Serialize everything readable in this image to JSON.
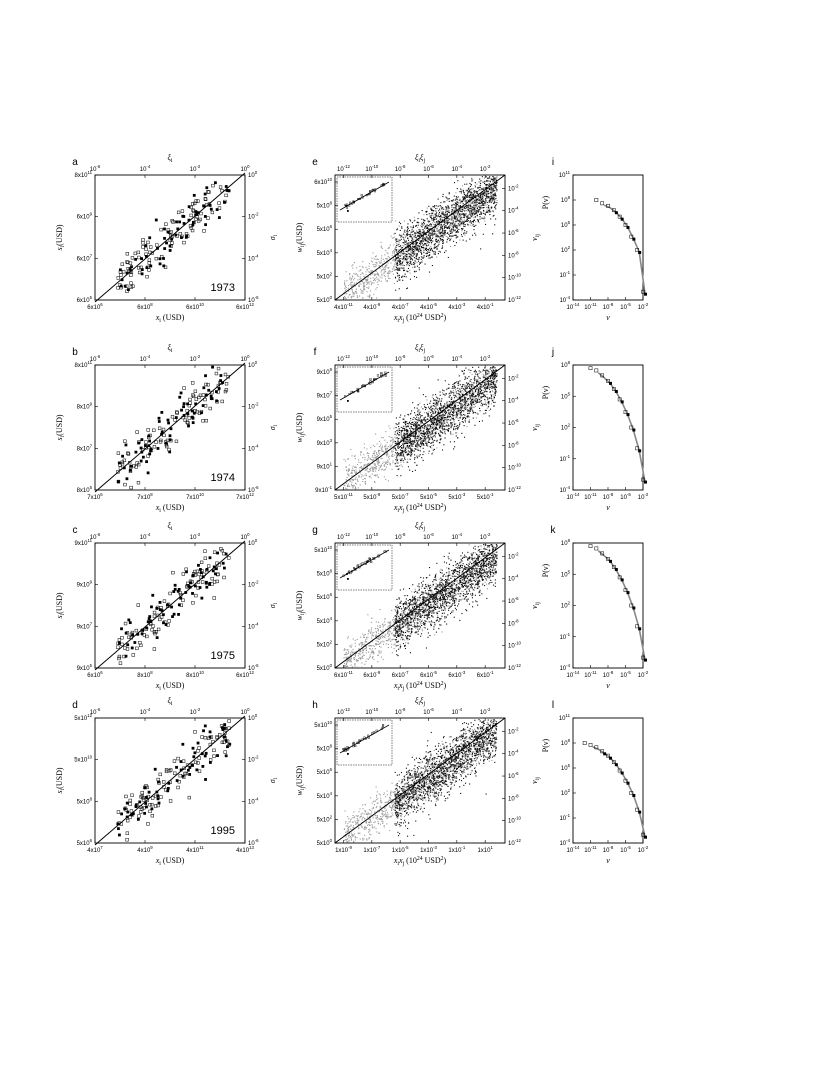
{
  "panels": [
    {
      "letter": "a",
      "kind": "scatter",
      "year": "1973",
      "xbot": [
        "6x10",
        "6",
        "6x10",
        "8",
        "6x10",
        "10",
        "6x10",
        "12"
      ],
      "ybot": [
        [
          "6x10",
          "5"
        ],
        [
          "6x10",
          "7"
        ],
        [
          "6x10",
          "9"
        ],
        [
          "8x10",
          "11"
        ]
      ],
      "xtop": [
        [
          "10",
          "-6"
        ],
        [
          "10",
          "-4"
        ],
        [
          "10",
          "-2"
        ],
        [
          "10",
          "0"
        ]
      ],
      "yright": [
        [
          "10",
          "-6"
        ],
        [
          "10",
          "-4"
        ],
        [
          "10",
          "-2"
        ],
        [
          "10",
          "0"
        ]
      ],
      "xlabel": "x",
      "xsub": "i",
      "xunit": " (USD)",
      "ylabel": "s",
      "ysub": "i",
      "yunit": "(USD)",
      "toplabel": "ξ",
      "topsub": "i",
      "rightlabel": "σ",
      "rightsub": "i"
    },
    {
      "letter": "b",
      "kind": "scatter",
      "year": "1974",
      "xbot": [
        "7x10",
        "6",
        "7x10",
        "8",
        "7x10",
        "10",
        "7x10",
        "12"
      ],
      "ybot": [
        [
          "8x10",
          "5"
        ],
        [
          "8x10",
          "7"
        ],
        [
          "8x10",
          "9"
        ],
        [
          "8x10",
          "11"
        ]
      ],
      "xtop": [
        [
          "10",
          "-6"
        ],
        [
          "10",
          "-4"
        ],
        [
          "10",
          "-2"
        ],
        [
          "10",
          "0"
        ]
      ],
      "yright": [
        [
          "10",
          "-6"
        ],
        [
          "10",
          "-4"
        ],
        [
          "10",
          "-2"
        ],
        [
          "10",
          "0"
        ]
      ],
      "xlabel": "x",
      "xsub": "i",
      "xunit": " (USD)",
      "ylabel": "s",
      "ysub": "i",
      "yunit": "(USD)",
      "toplabel": "ξ",
      "topsub": "i",
      "rightlabel": "σ",
      "rightsub": "i"
    },
    {
      "letter": "c",
      "kind": "scatter",
      "year": "1975",
      "xbot": [
        "6x10",
        "6",
        "8x10",
        "8",
        "8x10",
        "10",
        "6x10",
        "12"
      ],
      "ybot": [
        [
          "9x10",
          "5"
        ],
        [
          "9x10",
          "7"
        ],
        [
          "9x10",
          "9"
        ],
        [
          "9x10",
          "11"
        ]
      ],
      "xtop": [
        [
          "10",
          "-6"
        ],
        [
          "10",
          "-4"
        ],
        [
          "10",
          "-2"
        ],
        [
          "10",
          "0"
        ]
      ],
      "yright": [
        [
          "10",
          "-6"
        ],
        [
          "10",
          "-4"
        ],
        [
          "10",
          "-2"
        ],
        [
          "10",
          "0"
        ]
      ],
      "xlabel": "x",
      "xsub": "i",
      "xunit": " (USD)",
      "ylabel": "s",
      "ysub": "i",
      "yunit": "(USD)",
      "toplabel": "ξ",
      "topsub": "i",
      "rightlabel": "σ",
      "rightsub": "i"
    },
    {
      "letter": "d",
      "kind": "scatter",
      "year": "1995",
      "xbot": [
        "4x10",
        "7",
        "4x10",
        "9",
        "4x10",
        "11",
        "4x10",
        "13"
      ],
      "ybot": [
        [
          "5x10",
          "6"
        ],
        [
          "5x10",
          "8"
        ],
        [
          "5x10",
          "10"
        ],
        [
          "5x10",
          "12"
        ]
      ],
      "xtop": [
        [
          "10",
          "-6"
        ],
        [
          "10",
          "-4"
        ],
        [
          "10",
          "-2"
        ],
        [
          "10",
          "0"
        ]
      ],
      "yright": [
        [
          "10",
          "-6"
        ],
        [
          "10",
          "-4"
        ],
        [
          "10",
          "-2"
        ],
        [
          "10",
          "0"
        ]
      ],
      "xlabel": "x",
      "xsub": "i",
      "xunit": " (USD)",
      "ylabel": "s",
      "ysub": "i",
      "yunit": "(USD)",
      "toplabel": "ξ",
      "topsub": "i",
      "rightlabel": "σ",
      "rightsub": "i"
    },
    {
      "letter": "e",
      "kind": "cloud",
      "xbot": [
        [
          "4x10",
          "-11"
        ],
        [
          "4x10",
          "-9"
        ],
        [
          "4x10",
          "-7"
        ],
        [
          "4x10",
          "-5"
        ],
        [
          "4x10",
          "-3"
        ],
        [
          "4x10",
          "-1"
        ]
      ],
      "ybot": [
        [
          "5x10",
          "0"
        ],
        [
          "5x10",
          "2"
        ],
        [
          "5x10",
          "4"
        ],
        [
          "5x10",
          "6"
        ],
        [
          "5x10",
          "8"
        ],
        [
          "6x10",
          "10"
        ]
      ],
      "xtop": [
        [
          "10",
          "-12"
        ],
        [
          "10",
          "-10"
        ],
        [
          "10",
          "-8"
        ],
        [
          "10",
          "-6"
        ],
        [
          "10",
          "-4"
        ],
        [
          "10",
          "-2"
        ]
      ],
      "yright": [
        [
          "10",
          "-12"
        ],
        [
          "10",
          "-10"
        ],
        [
          "10",
          "-8"
        ],
        [
          "10",
          "-6"
        ],
        [
          "10",
          "-4"
        ],
        [
          "10",
          "-2"
        ]
      ]
    },
    {
      "letter": "f",
      "kind": "cloud",
      "xbot": [
        [
          "5x10",
          "-11"
        ],
        [
          "5x10",
          "-9"
        ],
        [
          "5x10",
          "-7"
        ],
        [
          "5x10",
          "-5"
        ],
        [
          "5x10",
          "-3"
        ],
        [
          "5x10",
          "-1"
        ]
      ],
      "ybot": [
        [
          "9x10",
          "-1"
        ],
        [
          "9x10",
          "1"
        ],
        [
          "9x10",
          "3"
        ],
        [
          "9x10",
          "5"
        ],
        [
          "9x10",
          "7"
        ],
        [
          "9x10",
          "9"
        ]
      ],
      "xtop": [
        [
          "10",
          "-12"
        ],
        [
          "10",
          "-10"
        ],
        [
          "10",
          "-8"
        ],
        [
          "10",
          "-6"
        ],
        [
          "10",
          "-4"
        ],
        [
          "10",
          "-2"
        ]
      ],
      "yright": [
        [
          "10",
          "-12"
        ],
        [
          "10",
          "-10"
        ],
        [
          "10",
          "-8"
        ],
        [
          "10",
          "-6"
        ],
        [
          "10",
          "-4"
        ],
        [
          "10",
          "-2"
        ]
      ]
    },
    {
      "letter": "g",
      "kind": "cloud",
      "xbot": [
        [
          "6x10",
          "-11"
        ],
        [
          "6x10",
          "-9"
        ],
        [
          "6x10",
          "-7"
        ],
        [
          "6x10",
          "-5"
        ],
        [
          "6x10",
          "-3"
        ],
        [
          "6x10",
          "-1"
        ]
      ],
      "ybot": [
        [
          "5x10",
          "0"
        ],
        [
          "5x10",
          "2"
        ],
        [
          "5x10",
          "4"
        ],
        [
          "5x10",
          "6"
        ],
        [
          "5x10",
          "8"
        ],
        [
          "5x10",
          "10"
        ]
      ],
      "xtop": [
        [
          "10",
          "-12"
        ],
        [
          "10",
          "-10"
        ],
        [
          "10",
          "-8"
        ],
        [
          "10",
          "-6"
        ],
        [
          "10",
          "-4"
        ],
        [
          "10",
          "-2"
        ]
      ],
      "yright": [
        [
          "10",
          "-12"
        ],
        [
          "10",
          "-10"
        ],
        [
          "10",
          "-8"
        ],
        [
          "10",
          "-6"
        ],
        [
          "10",
          "-4"
        ],
        [
          "10",
          "-2"
        ]
      ]
    },
    {
      "letter": "h",
      "kind": "cloud",
      "xbot": [
        [
          "1x10",
          "-9"
        ],
        [
          "1x10",
          "-7"
        ],
        [
          "1x10",
          "-5"
        ],
        [
          "1x10",
          "-3"
        ],
        [
          "1x10",
          "-1"
        ],
        [
          "1x10",
          "1"
        ]
      ],
      "ybot": [
        [
          "5x10",
          "0"
        ],
        [
          "5x10",
          "2"
        ],
        [
          "5x10",
          "4"
        ],
        [
          "5x10",
          "6"
        ],
        [
          "5x10",
          "8"
        ],
        [
          "5x10",
          "10"
        ]
      ],
      "xtop": [
        [
          "10",
          "-12"
        ],
        [
          "10",
          "-10"
        ],
        [
          "10",
          "-8"
        ],
        [
          "10",
          "-6"
        ],
        [
          "10",
          "-4"
        ],
        [
          "10",
          "-2"
        ]
      ],
      "yright": [
        [
          "10",
          "-12"
        ],
        [
          "10",
          "-10"
        ],
        [
          "10",
          "-8"
        ],
        [
          "10",
          "-6"
        ],
        [
          "10",
          "-4"
        ],
        [
          "10",
          "-2"
        ]
      ]
    },
    {
      "letter": "i",
      "kind": "dist",
      "xbot": [
        [
          "10",
          "-14"
        ],
        [
          "10",
          "-11"
        ],
        [
          "10",
          "-8"
        ],
        [
          "10",
          "-5"
        ],
        [
          "10",
          "-2"
        ]
      ],
      "ybot": [
        [
          "10",
          "-4"
        ],
        [
          "10",
          "-1"
        ],
        [
          "10",
          "2"
        ],
        [
          "10",
          "5"
        ],
        [
          "10",
          "8"
        ],
        [
          "10",
          "11"
        ]
      ]
    },
    {
      "letter": "j",
      "kind": "dist",
      "xbot": [
        [
          "10",
          "-14"
        ],
        [
          "10",
          "-11"
        ],
        [
          "10",
          "-8"
        ],
        [
          "10",
          "-5"
        ],
        [
          "10",
          "-2"
        ]
      ],
      "ybot": [
        [
          "10",
          "-4"
        ],
        [
          "10",
          "-1"
        ],
        [
          "10",
          "2"
        ],
        [
          "10",
          "5"
        ],
        [
          "10",
          "8"
        ]
      ]
    },
    {
      "letter": "k",
      "kind": "dist",
      "xbot": [
        [
          "10",
          "-14"
        ],
        [
          "10",
          "-11"
        ],
        [
          "10",
          "-8"
        ],
        [
          "10",
          "-5"
        ],
        [
          "10",
          "-2"
        ]
      ],
      "ybot": [
        [
          "10",
          "-4"
        ],
        [
          "10",
          "-1"
        ],
        [
          "10",
          "2"
        ],
        [
          "10",
          "5"
        ],
        [
          "10",
          "8"
        ]
      ]
    },
    {
      "letter": "l",
      "kind": "dist",
      "xbot": [
        [
          "10",
          "-14"
        ],
        [
          "10",
          "-11"
        ],
        [
          "10",
          "-8"
        ],
        [
          "10",
          "-5"
        ],
        [
          "10",
          "-2"
        ]
      ],
      "ybot": [
        [
          "10",
          "-4"
        ],
        [
          "10",
          "-1"
        ],
        [
          "10",
          "2"
        ],
        [
          "10",
          "5"
        ],
        [
          "10",
          "8"
        ],
        [
          "10",
          "11"
        ]
      ]
    }
  ],
  "labels": {
    "cloud_x": "x",
    "cloud_x_sub1": "i",
    "cloud_x_sub2": "j",
    "cloud_x_unit": " (10",
    "cloud_x_exp": "24",
    "cloud_x_unit2": " USD",
    "cloud_x_exp2": "2",
    "cloud_x_close": ")",
    "cloud_y": "w",
    "cloud_y_sub": "ij",
    "cloud_y_unit": "(USD)",
    "cloud_top": "ξ",
    "cloud_top_sub1": "i",
    "cloud_top_sub2": "j",
    "cloud_right": "ν",
    "cloud_right_sub": "ij",
    "dist_x": "ν",
    "dist_y": "P(ν)"
  },
  "chart_data": [
    {
      "type": "scatter",
      "panel": "a",
      "title": "1973",
      "xlabel": "x_i (USD)",
      "ylabel": "s_i (USD)",
      "top_axis": "ξ_i",
      "right_axis": "σ_i",
      "xlim": [
        6000000.0,
        6000000000000.0
      ],
      "ylim": [
        600000.0,
        800000000000.0
      ],
      "fit_line": [
        [
          6000000.0,
          300000.0
        ],
        [
          6000000000000.0,
          800000000000.0
        ]
      ],
      "scale": "log-log",
      "grid": false
    },
    {
      "type": "scatter",
      "panel": "b",
      "title": "1974",
      "xlabel": "x_i (USD)",
      "ylabel": "s_i (USD)",
      "top_axis": "ξ_i",
      "right_axis": "σ_i",
      "xlim": [
        7000000.0,
        7000000000000.0
      ],
      "ylim": [
        800000.0,
        800000000000.0
      ],
      "scale": "log-log",
      "grid": false
    },
    {
      "type": "scatter",
      "panel": "c",
      "title": "1975",
      "xlabel": "x_i (USD)",
      "ylabel": "s_i (USD)",
      "top_axis": "ξ_i",
      "right_axis": "σ_i",
      "xlim": [
        6000000.0,
        6000000000000.0
      ],
      "ylim": [
        900000.0,
        900000000000.0
      ],
      "scale": "log-log",
      "grid": false
    },
    {
      "type": "scatter",
      "panel": "d",
      "title": "1995",
      "xlabel": "x_i (USD)",
      "ylabel": "s_i (USD)",
      "top_axis": "ξ_i",
      "right_axis": "σ_i",
      "xlim": [
        40000000.0,
        40000000000000.0
      ],
      "ylim": [
        5000000.0,
        5000000000000.0
      ],
      "scale": "log-log",
      "grid": false
    },
    {
      "type": "scatter",
      "panel": "e",
      "xlabel": "x_i x_j (10^24 USD^2)",
      "ylabel": "w_ij (USD)",
      "top_axis": "ξ_i ξ_j",
      "right_axis": "ν_ij",
      "xlim": [
        4e-11,
        0.4
      ],
      "ylim": [
        5.0,
        60000000000.0
      ],
      "scale": "log-log",
      "inset": true
    },
    {
      "type": "scatter",
      "panel": "f",
      "xlabel": "x_i x_j (10^24 USD^2)",
      "ylabel": "w_ij (USD)",
      "top_axis": "ξ_i ξ_j",
      "right_axis": "ν_ij",
      "xlim": [
        5e-11,
        0.5
      ],
      "ylim": [
        0.9,
        9000000000.0
      ],
      "scale": "log-log",
      "inset": true
    },
    {
      "type": "scatter",
      "panel": "g",
      "xlabel": "x_i x_j (10^24 USD^2)",
      "ylabel": "w_ij (USD)",
      "top_axis": "ξ_i ξ_j",
      "right_axis": "ν_ij",
      "xlim": [
        6e-11,
        0.6
      ],
      "ylim": [
        5.0,
        50000000000.0
      ],
      "scale": "log-log",
      "inset": true
    },
    {
      "type": "scatter",
      "panel": "h",
      "xlabel": "x_i x_j (10^24 USD^2)",
      "ylabel": "w_ij (USD)",
      "top_axis": "ξ_i ξ_j",
      "right_axis": "ν_ij",
      "xlim": [
        1e-09,
        10.0
      ],
      "ylim": [
        5.0,
        50000000000.0
      ],
      "scale": "log-log",
      "inset": true
    },
    {
      "type": "scatter",
      "panel": "i",
      "xlabel": "ν",
      "ylabel": "P(ν)",
      "xlim": [
        1e-14,
        0.01
      ],
      "ylim": [
        0.0001,
        100000000000.0
      ],
      "scale": "log-log",
      "points": [
        [
          1e-10,
          100000000.0
        ],
        [
          1e-09,
          40000000.0
        ],
        [
          1e-08,
          20000000.0
        ],
        [
          1e-07,
          6000000.0
        ],
        [
          1e-06,
          1000000.0
        ],
        [
          1e-05,
          100000.0
        ],
        [
          0.0001,
          4000.0
        ],
        [
          0.001,
          100.0
        ],
        [
          0.01,
          0.001
        ]
      ]
    },
    {
      "type": "scatter",
      "panel": "j",
      "xlabel": "ν",
      "ylabel": "P(ν)",
      "xlim": [
        1e-14,
        0.01
      ],
      "ylim": [
        0.0001,
        100000000.0
      ],
      "scale": "log-log",
      "points": [
        [
          1e-11,
          50000000.0
        ],
        [
          1e-10,
          30000000.0
        ],
        [
          1e-09,
          10000000.0
        ],
        [
          1e-08,
          3000000.0
        ],
        [
          1e-07,
          500000.0
        ],
        [
          1e-06,
          50000.0
        ],
        [
          1e-05,
          3000.0
        ],
        [
          0.0001,
          100.0
        ],
        [
          0.001,
          1.0
        ],
        [
          0.01,
          0.001
        ]
      ]
    },
    {
      "type": "scatter",
      "panel": "k",
      "xlabel": "ν",
      "ylabel": "P(ν)",
      "xlim": [
        1e-14,
        0.01
      ],
      "ylim": [
        0.0001,
        100000000.0
      ],
      "scale": "log-log",
      "points": [
        [
          1e-11,
          50000000.0
        ],
        [
          1e-10,
          30000000.0
        ],
        [
          1e-09,
          10000000.0
        ],
        [
          1e-08,
          3000000.0
        ],
        [
          1e-07,
          500000.0
        ],
        [
          1e-06,
          50000.0
        ],
        [
          1e-05,
          3000.0
        ],
        [
          0.0001,
          100.0
        ],
        [
          0.001,
          1.0
        ],
        [
          0.01,
          0.001
        ]
      ]
    },
    {
      "type": "scatter",
      "panel": "l",
      "xlabel": "ν",
      "ylabel": "P(ν)",
      "xlim": [
        1e-14,
        0.01
      ],
      "ylim": [
        0.0001,
        100000000000.0
      ],
      "scale": "log-log",
      "points": [
        [
          1e-12,
          100000000.0
        ],
        [
          1e-11,
          60000000.0
        ],
        [
          1e-10,
          30000000.0
        ],
        [
          1e-09,
          10000000.0
        ],
        [
          1e-08,
          3000000.0
        ],
        [
          1e-07,
          500000.0
        ],
        [
          1e-06,
          50000.0
        ],
        [
          1e-05,
          3000.0
        ],
        [
          0.0001,
          100.0
        ],
        [
          0.001,
          1.0
        ],
        [
          0.01,
          0.001
        ]
      ]
    }
  ]
}
